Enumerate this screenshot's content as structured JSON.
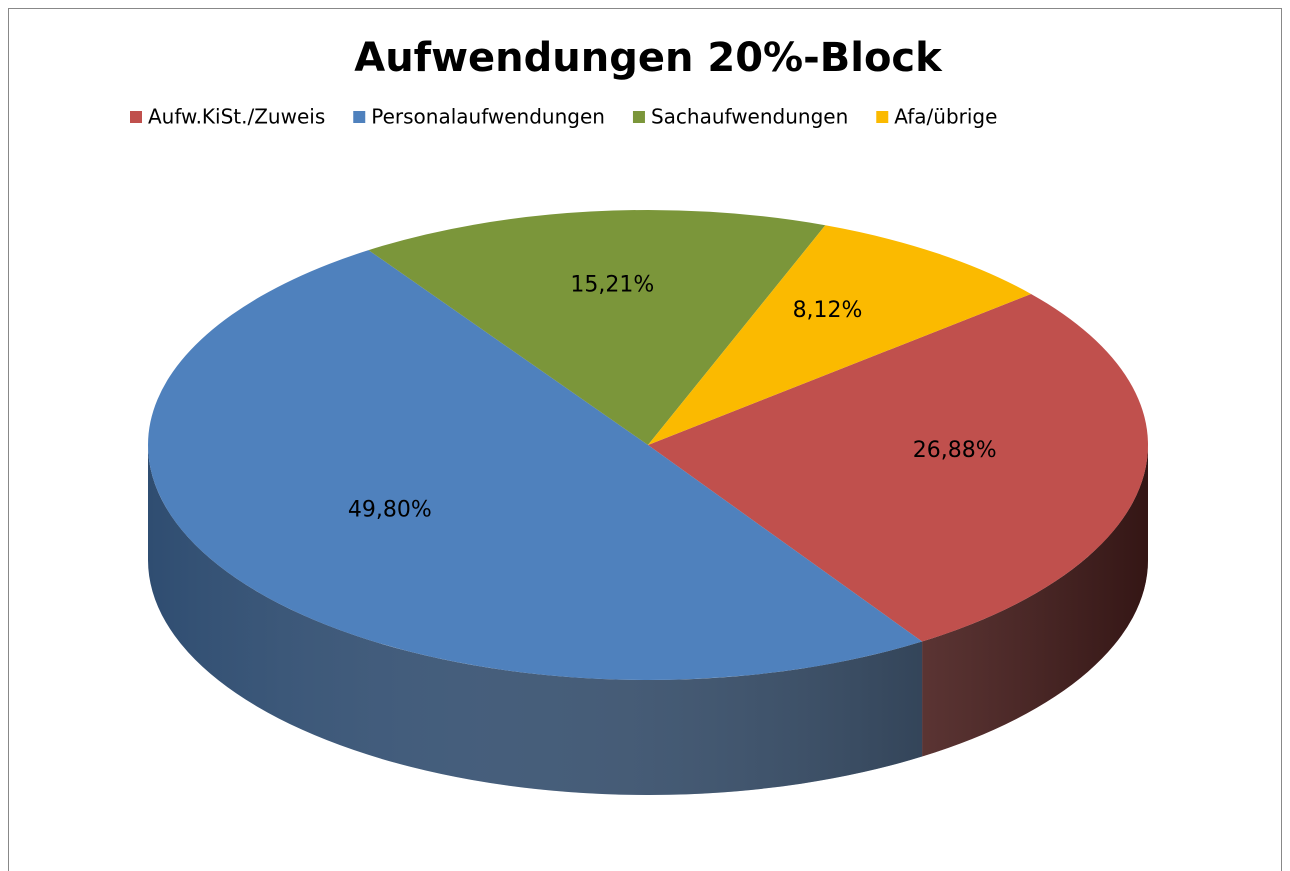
{
  "chart_data": {
    "type": "pie",
    "title": "Aufwendungen 20%-Block",
    "categories": [
      "Aufw.KiSt./Zuweis",
      "Personalaufwendungen",
      "Sachaufwendungen",
      "Afa/übrige"
    ],
    "values": [
      26.88,
      49.8,
      15.21,
      8.12
    ],
    "value_labels": [
      "26,88%",
      "49,80%",
      "15,21%",
      "8,12%"
    ],
    "colors": [
      "#c0504d",
      "#4f81bd",
      "#7b963a",
      "#fbba00"
    ],
    "legend": "top"
  }
}
